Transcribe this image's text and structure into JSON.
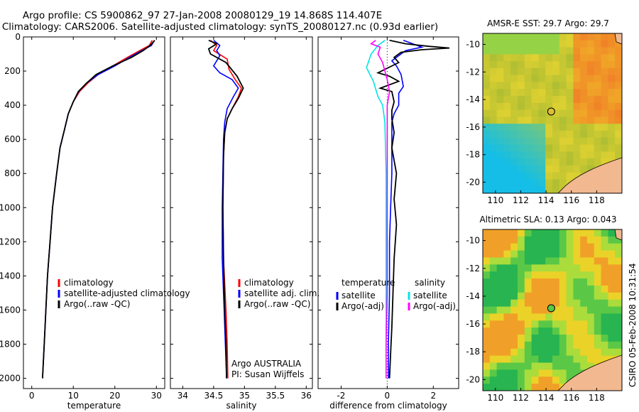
{
  "title_line1": "Argo profile: CS 5900862_97 27-Jan-2008 20080129_19 14.868S 114.407E",
  "title_line2": "Climatology: CARS2006. Satellite-adjusted climatology: synTS_20080127.nc (0.93d earlier)",
  "credit": "CSIRO 05-Feb-2008 10:31:54",
  "colors": {
    "climatology": "#ff0000",
    "satellite": "#0000ff",
    "argo": "#000000",
    "sat_salinity": "#00e5e5",
    "argo_salinity_adj": "#ff00ff"
  },
  "chart_data": [
    {
      "type": "line",
      "name": "temperature-profile",
      "xlabel": "temperature",
      "ylabel": "",
      "xlim": [
        -2,
        32
      ],
      "ylim": [
        2060,
        0
      ],
      "y_reversed": true,
      "xticks": [
        0,
        10,
        20,
        30
      ],
      "yticks": [
        0,
        200,
        400,
        600,
        800,
        1000,
        1200,
        1400,
        1600,
        1800,
        2000
      ],
      "legend": [
        "climatology",
        "satellite-adjusted climatology",
        "Argo(..raw -QC)"
      ],
      "series": [
        {
          "name": "climatology",
          "color": "#ff0000",
          "points": [
            [
              29,
              20
            ],
            [
              28.3,
              50
            ],
            [
              26,
              80
            ],
            [
              23,
              120
            ],
            [
              19.5,
              170
            ],
            [
              16,
              220
            ],
            [
              13.5,
              270
            ],
            [
              11.5,
              320
            ],
            [
              10,
              380
            ],
            [
              8.8,
              450
            ],
            [
              7.8,
              550
            ],
            [
              6.8,
              650
            ],
            [
              6,
              800
            ],
            [
              5,
              1000
            ],
            [
              4.4,
              1200
            ],
            [
              3.8,
              1400
            ],
            [
              3.4,
              1600
            ],
            [
              3,
              1800
            ],
            [
              2.6,
              2000
            ]
          ]
        },
        {
          "name": "satellite-adjusted climatology",
          "color": "#0000ff",
          "points": [
            [
              29.5,
              20
            ],
            [
              28.8,
              50
            ],
            [
              26.5,
              80
            ],
            [
              23.5,
              120
            ],
            [
              20,
              170
            ],
            [
              16,
              220
            ],
            [
              13.2,
              270
            ],
            [
              11.3,
              320
            ],
            [
              10,
              380
            ],
            [
              8.8,
              450
            ],
            [
              7.8,
              550
            ],
            [
              6.8,
              650
            ],
            [
              6,
              800
            ],
            [
              5,
              1000
            ],
            [
              4.4,
              1200
            ],
            [
              3.8,
              1400
            ],
            [
              3.4,
              1600
            ],
            [
              3,
              1800
            ],
            [
              2.6,
              2000
            ]
          ]
        },
        {
          "name": "Argo(..raw -QC)",
          "color": "#000000",
          "points": [
            [
              29.6,
              20
            ],
            [
              28.5,
              50
            ],
            [
              26.8,
              80
            ],
            [
              24,
              120
            ],
            [
              19.5,
              170
            ],
            [
              15.5,
              220
            ],
            [
              13.2,
              270
            ],
            [
              11.2,
              320
            ],
            [
              10,
              380
            ],
            [
              8.8,
              450
            ],
            [
              7.8,
              550
            ],
            [
              6.8,
              650
            ],
            [
              6,
              800
            ],
            [
              5,
              1000
            ],
            [
              4.4,
              1200
            ],
            [
              3.8,
              1400
            ],
            [
              3.4,
              1600
            ],
            [
              3,
              1800
            ],
            [
              2.6,
              2000
            ]
          ]
        }
      ]
    },
    {
      "type": "line",
      "name": "salinity-profile",
      "xlabel": "salinity",
      "ylabel": "",
      "xlim": [
        33.8,
        36.1
      ],
      "ylim": [
        2060,
        0
      ],
      "y_reversed": true,
      "xticks": [
        34,
        34.5,
        35,
        35.5,
        36
      ],
      "legend": [
        "climatology",
        "satellite adj. clim.",
        "Argo(..raw -QC)"
      ],
      "annotation": [
        "Argo AUSTRALIA",
        "PI: Susan Wijffels"
      ],
      "series": [
        {
          "name": "climatology",
          "color": "#ff0000",
          "points": [
            [
              34.45,
              20
            ],
            [
              34.55,
              50
            ],
            [
              34.5,
              80
            ],
            [
              34.72,
              130
            ],
            [
              34.75,
              190
            ],
            [
              34.85,
              250
            ],
            [
              34.95,
              300
            ],
            [
              34.9,
              350
            ],
            [
              34.8,
              420
            ],
            [
              34.72,
              480
            ],
            [
              34.68,
              560
            ],
            [
              34.66,
              700
            ],
            [
              34.65,
              1000
            ],
            [
              34.66,
              1300
            ],
            [
              34.7,
              1600
            ],
            [
              34.72,
              1800
            ],
            [
              34.73,
              2000
            ]
          ]
        },
        {
          "name": "satellite adj. clim.",
          "color": "#0000ff",
          "points": [
            [
              34.5,
              20
            ],
            [
              34.6,
              50
            ],
            [
              34.55,
              80
            ],
            [
              34.6,
              110
            ],
            [
              34.5,
              170
            ],
            [
              34.6,
              210
            ],
            [
              34.8,
              250
            ],
            [
              34.9,
              300
            ],
            [
              34.82,
              350
            ],
            [
              34.72,
              420
            ],
            [
              34.68,
              500
            ],
            [
              34.66,
              600
            ],
            [
              34.65,
              800
            ],
            [
              34.64,
              1000
            ],
            [
              34.64,
              1300
            ],
            [
              34.67,
              1600
            ],
            [
              34.69,
              1800
            ],
            [
              34.71,
              2000
            ]
          ]
        },
        {
          "name": "Argo(..raw -QC)",
          "color": "#000000",
          "points": [
            [
              34.42,
              20
            ],
            [
              34.55,
              40
            ],
            [
              34.42,
              70
            ],
            [
              34.45,
              100
            ],
            [
              34.7,
              150
            ],
            [
              34.88,
              230
            ],
            [
              34.98,
              300
            ],
            [
              34.9,
              360
            ],
            [
              34.8,
              420
            ],
            [
              34.72,
              480
            ],
            [
              34.68,
              560
            ],
            [
              34.66,
              700
            ],
            [
              34.65,
              1000
            ],
            [
              34.66,
              1300
            ],
            [
              34.68,
              1600
            ],
            [
              34.7,
              1800
            ],
            [
              34.71,
              2000
            ]
          ]
        }
      ]
    },
    {
      "type": "line",
      "name": "difference-profile",
      "xlabel": "difference from climatology",
      "ylabel": "",
      "xlim": [
        -3,
        3.1
      ],
      "ylim": [
        2060,
        0
      ],
      "y_reversed": true,
      "xticks": [
        -2,
        0,
        2
      ],
      "legend_left": {
        "title": "temperature",
        "items": [
          "satellite",
          "Argo(-adj)"
        ]
      },
      "legend_right": {
        "title": "salinity",
        "items": [
          "satellite",
          "Argo(-adj)"
        ]
      },
      "series": [
        {
          "name": "temperature satellite",
          "color": "#0000ff",
          "points": [
            [
              0.7,
              20
            ],
            [
              1.2,
              45
            ],
            [
              1.5,
              60
            ],
            [
              0.8,
              80
            ],
            [
              0.5,
              110
            ],
            [
              0.2,
              140
            ],
            [
              0.4,
              170
            ],
            [
              0.6,
              220
            ],
            [
              0.7,
              290
            ],
            [
              0.5,
              330
            ],
            [
              0.5,
              400
            ],
            [
              0.3,
              450
            ],
            [
              0.2,
              500
            ],
            [
              0.2,
              600
            ],
            [
              0.2,
              800
            ],
            [
              0.15,
              1000
            ],
            [
              0.1,
              1200
            ],
            [
              0.1,
              1500
            ],
            [
              0.05,
              1800
            ],
            [
              0.05,
              2000
            ]
          ]
        },
        {
          "name": "temperature Argo(-adj)",
          "color": "#000000",
          "points": [
            [
              0.1,
              20
            ],
            [
              0.8,
              40
            ],
            [
              1.8,
              55
            ],
            [
              2.7,
              65
            ],
            [
              1.5,
              75
            ],
            [
              0.6,
              90
            ],
            [
              0.3,
              120
            ],
            [
              0.5,
              150
            ],
            [
              -0.4,
              210
            ],
            [
              0.1,
              230
            ],
            [
              0.5,
              260
            ],
            [
              -0.3,
              300
            ],
            [
              0.2,
              320
            ],
            [
              0.3,
              380
            ],
            [
              0.2,
              430
            ],
            [
              0.2,
              480
            ],
            [
              0.3,
              560
            ],
            [
              0.2,
              650
            ],
            [
              0.4,
              800
            ],
            [
              0.3,
              950
            ],
            [
              0.4,
              1100
            ],
            [
              0.3,
              1300
            ],
            [
              0.25,
              1500
            ],
            [
              0.2,
              1700
            ],
            [
              0.15,
              1850
            ],
            [
              0.1,
              2000
            ]
          ]
        },
        {
          "name": "salinity satellite",
          "color": "#00e5e5",
          "points": [
            [
              -0.1,
              20
            ],
            [
              -0.4,
              50
            ],
            [
              -0.7,
              100
            ],
            [
              -0.9,
              180
            ],
            [
              -0.6,
              260
            ],
            [
              -0.4,
              350
            ],
            [
              -0.2,
              400
            ],
            [
              -0.1,
              500
            ],
            [
              -0.05,
              800
            ],
            [
              -0.05,
              1100
            ],
            [
              -0.05,
              1400
            ],
            [
              -0.05,
              1700
            ],
            [
              -0.05,
              2000
            ]
          ]
        },
        {
          "name": "salinity Argo(-adj)",
          "color": "#ff00ff",
          "points": [
            [
              -0.5,
              20
            ],
            [
              -0.7,
              40
            ],
            [
              -0.3,
              60
            ],
            [
              -0.4,
              100
            ],
            [
              -0.2,
              150
            ],
            [
              0.0,
              250
            ],
            [
              0.1,
              320
            ],
            [
              0.0,
              400
            ],
            [
              0.0,
              600
            ],
            [
              0.0,
              900
            ],
            [
              0.0,
              1200
            ],
            [
              0.0,
              1500
            ],
            [
              -0.05,
              1800
            ],
            [
              -0.05,
              2000
            ]
          ]
        }
      ]
    },
    {
      "type": "heatmap",
      "name": "sst-map",
      "title": "AMSR-E SST: 29.7  Argo: 29.7",
      "xlim": [
        109,
        120
      ],
      "ylim": [
        -20.8,
        -9.2
      ],
      "xticks": [
        110,
        112,
        114,
        116,
        118
      ],
      "yticks": [
        -10,
        -12,
        -14,
        -16,
        -18,
        -20
      ],
      "marker": {
        "lon": 114.407,
        "lat": -14.868
      },
      "value": "29.7",
      "argo": "29.7"
    },
    {
      "type": "heatmap",
      "name": "sla-map",
      "title": "Altimetric SLA: 0.13  Argo: 0.043",
      "xlim": [
        109,
        120
      ],
      "ylim": [
        -20.8,
        -9.2
      ],
      "xticks": [
        110,
        112,
        114,
        116,
        118
      ],
      "yticks": [
        -10,
        -12,
        -14,
        -16,
        -18,
        -20
      ],
      "marker": {
        "lon": 114.407,
        "lat": -14.868
      },
      "value": "0.13",
      "argo": "0.043"
    }
  ]
}
